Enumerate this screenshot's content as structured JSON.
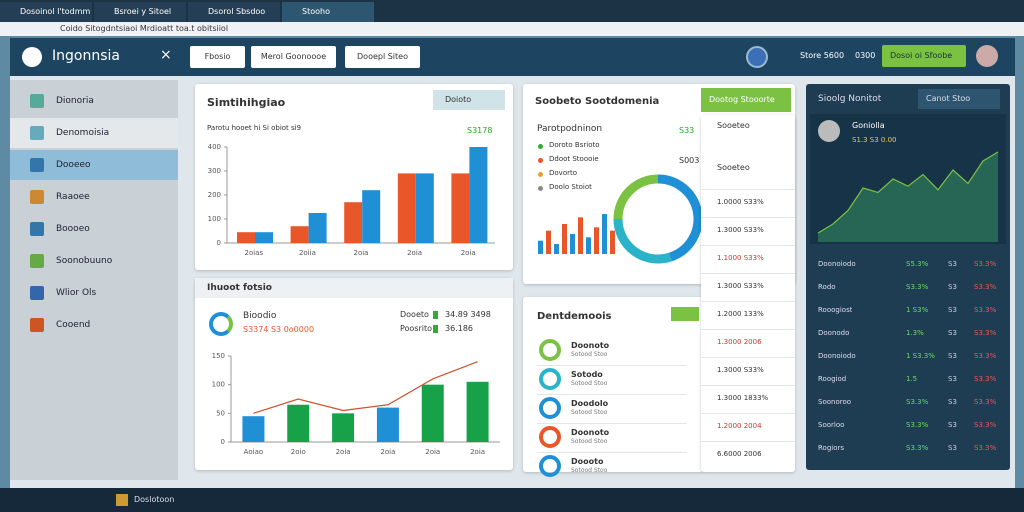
{
  "tabs": [
    "Dosoinol I'todmm",
    "Bsroei y Sitoel",
    "Dsorol Sbsdoo",
    "Stooho"
  ],
  "address": "Coido Sitogdntsiaoi Mrdioatt toa.t obitsiiol",
  "header": {
    "logo": "Ingonnsia",
    "buttons": [
      "Fbosio",
      "Merol Goonoooe",
      "Dooepl Siteo"
    ],
    "user": "Store 5600",
    "count": "0300",
    "action": "Dosoi oi Sfoobe"
  },
  "sidebar": [
    "Dionoria",
    "Denomoisia",
    "Dooeeo",
    "Raaoee",
    "Boooeo",
    "Soonobuuno",
    "Wlior Ols",
    "Cooend"
  ],
  "card1": {
    "title": "Simtihihgiao",
    "button": "Doioto",
    "subtitle": "Parotu hooet hi Si obiot si9",
    "badge": "S3178",
    "chart": {
      "type": "bar",
      "categories": [
        "2oias",
        "2oiia",
        "2oia",
        "2oia",
        "2oia"
      ],
      "series": [
        {
          "name": "A",
          "color": "#e8562a",
          "values": [
            45,
            70,
            170,
            290,
            290
          ]
        },
        {
          "name": "B",
          "color": "#1f8fd6",
          "values": [
            45,
            125,
            220,
            290,
            400
          ]
        }
      ],
      "ylim": [
        0,
        400
      ],
      "yticks": [
        0,
        100,
        200,
        300,
        400
      ]
    }
  },
  "card2": {
    "title": "Ihuoot fotsio",
    "name": "Bioodio",
    "sub": "S3374 S3 0o0000",
    "legend": [
      "Dooeto",
      "Poosrito"
    ],
    "legend_values": [
      "34.89 3498",
      "36.186"
    ],
    "chart": {
      "type": "bar",
      "categories": [
        "Aoiao",
        "2oio",
        "2oia",
        "2oia",
        "2oia",
        "2oia"
      ],
      "values": [
        45,
        65,
        50,
        60,
        100,
        105
      ],
      "line": [
        50,
        75,
        55,
        65,
        110,
        140
      ],
      "color": "#17a24a",
      "ylim": [
        0,
        150
      ],
      "yticks": [
        0,
        50,
        100,
        150
      ]
    }
  },
  "card3": {
    "title": "Soobeto Sootdomenia",
    "button": "Dootog Stooorte",
    "heading": "Parotpodninon",
    "items": [
      "Doroto Bsrioto",
      "Ddoot Stoooie",
      "Dovorto",
      "Doolo Stoiot"
    ],
    "v1": "S33",
    "v2": "S003",
    "donut": [
      45,
      30,
      25
    ],
    "bars": [
      20,
      35,
      15,
      45,
      30,
      55,
      25,
      40,
      60,
      35
    ]
  },
  "card4": {
    "title": "Dentdemoois",
    "items": [
      "Doonoto",
      "Sotodo",
      "Doodolo",
      "Doonoto",
      "Doooto"
    ],
    "sub": "Sotood Stoo"
  },
  "column": {
    "heads": [
      "Sooeteo",
      "Sooeteo"
    ],
    "rows": [
      "1.0000 S33%",
      "1.3000 S33%",
      "1.1000 S33%",
      "1.3000 S33%",
      "1.2000 133%",
      "1.3000 2006",
      "1.3000 S33%",
      "1.3000 1833%",
      "1.2000 2004",
      "6.6000 2006"
    ]
  },
  "panel": {
    "title": "Sioolg Nonitot",
    "button": "Canot Stoo",
    "card_title": "Goniolla",
    "card_sub": "S1.3 S3 0.00",
    "area": [
      10,
      20,
      35,
      60,
      55,
      70,
      62,
      75,
      58,
      80,
      65,
      90,
      100
    ],
    "rows": [
      [
        "Doonoiodo",
        "S5.3%",
        "S3",
        "S3.3%"
      ],
      [
        "Rodo",
        "S3.3%",
        "S3",
        "S3.3%"
      ],
      [
        "Rooogiost",
        "1 S3%",
        "S3",
        "S3.3%"
      ],
      [
        "Doonodo",
        "1.3%",
        "S3",
        "S3.3%"
      ],
      [
        "Doonoiodo",
        "1 S3.3%",
        "S3",
        "S3.3%"
      ],
      [
        "Roogiod",
        "1.5",
        "S3",
        "S3.3%"
      ],
      [
        "Soonoroo",
        "S3.3%",
        "S3",
        "S3.3%"
      ],
      [
        "Soorloo",
        "S3.3%",
        "S3",
        "S3.3%"
      ],
      [
        "Rogiors",
        "S3.3%",
        "S3",
        "S3.3%"
      ]
    ]
  },
  "taskbar": {
    "app": "Doslotoon"
  }
}
